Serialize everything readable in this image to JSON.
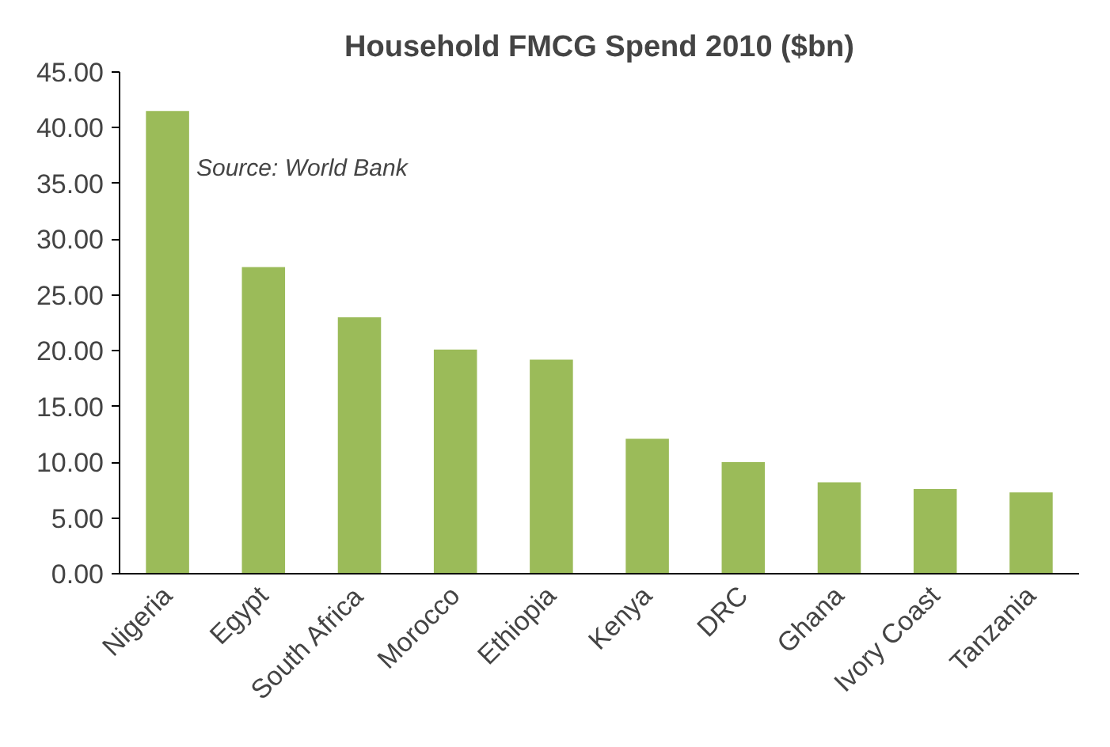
{
  "chart_data": {
    "type": "bar",
    "title": "Household FMCG Spend 2010 ($bn)",
    "categories": [
      "Nigeria",
      "Egypt",
      "South Africa",
      "Morocco",
      "Ethiopia",
      "Kenya",
      "DRC",
      "Ghana",
      "Ivory Coast",
      "Tanzania"
    ],
    "values": [
      41.5,
      27.5,
      23.0,
      20.1,
      19.2,
      12.1,
      10.0,
      8.2,
      7.6,
      7.3
    ],
    "color": "#9bbb59",
    "ylim": [
      0,
      45
    ],
    "yticks": [
      {
        "value": 0,
        "label": "0.00"
      },
      {
        "value": 5,
        "label": "5.00"
      },
      {
        "value": 10,
        "label": "10.00"
      },
      {
        "value": 15,
        "label": "15.00"
      },
      {
        "value": 20,
        "label": "20.00"
      },
      {
        "value": 25,
        "label": "25.00"
      },
      {
        "value": 30,
        "label": "30.00"
      },
      {
        "value": 35,
        "label": "35.00"
      },
      {
        "value": 40,
        "label": "40.00"
      },
      {
        "value": 45,
        "label": "45.00"
      }
    ],
    "grid": false,
    "annotations": [
      "Source: World Bank"
    ]
  }
}
